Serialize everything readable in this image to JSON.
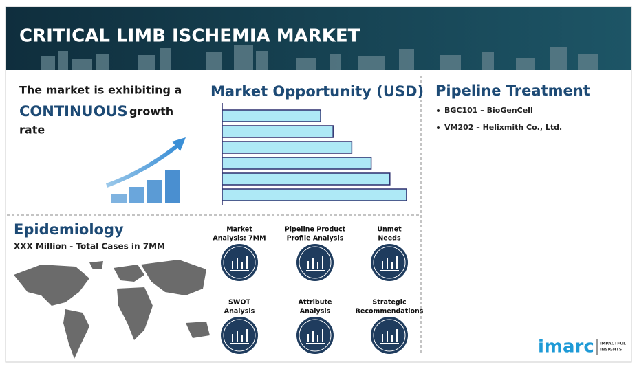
{
  "header": {
    "title": "CRITICAL LIMB ISCHEMIA MARKET"
  },
  "growth": {
    "line1": "The market is exhibiting a",
    "highlight": "CONTINUOUS",
    "line2": "growth",
    "line3": "rate"
  },
  "chart_data": {
    "type": "bar",
    "orientation": "horizontal",
    "title": "Market Opportunity (USD)",
    "values": [
      142,
      160,
      187,
      215,
      242,
      266
    ],
    "xlim": [
      0,
      270
    ],
    "color": "#aee9f6",
    "edge_color": "#2d2f6e"
  },
  "pipeline": {
    "title": "Pipeline Treatment",
    "items": [
      "BGC101 – BioGenCell",
      "VM202 – Helixmith Co., Ltd."
    ]
  },
  "epidemiology": {
    "title": "Epidemiology",
    "subtitle": "XXX Million - Total Cases in 7MM"
  },
  "features": [
    [
      "Market",
      "Analysis: 7MM"
    ],
    [
      "Pipeline Product",
      "Profile Analysis"
    ],
    [
      "Unmet",
      "Needs"
    ],
    [
      "SWOT",
      "Analysis"
    ],
    [
      "Attribute",
      "Analysis"
    ],
    [
      "Strategic",
      "Recommendations"
    ]
  ],
  "logo": {
    "brand": "imarc",
    "tag1": "IMPACTFUL",
    "tag2": "INSIGHTS"
  }
}
